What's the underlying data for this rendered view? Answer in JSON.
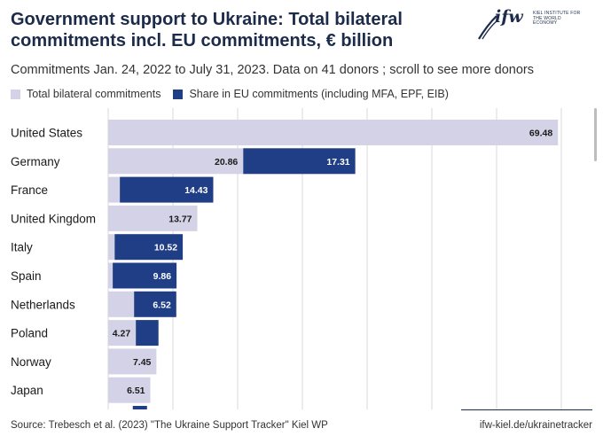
{
  "header": {
    "title": "Government support to Ukraine: Total bilateral commitments incl. EU commitments, € billion",
    "subtitle": "Commitments Jan. 24, 2022 to July 31, 2023. Data on 41 donors ; scroll to see more donors"
  },
  "logo": {
    "mark": "ifw",
    "institute": "KIEL INSTITUTE FOR THE WORLD ECONOMY"
  },
  "footer": {
    "source": "Source: Trebesch et al. (2023) \"The Ukraine Support Tracker\" Kiel WP",
    "site": "ifw-kiel.de/ukrainetracker"
  },
  "colors": {
    "bilateral": "#d4d2e6",
    "eu": "#1f3e86",
    "title": "#1c2b4a"
  },
  "chart_data": {
    "type": "bar",
    "orientation": "horizontal",
    "stacked": true,
    "title": "Government support to Ukraine: Total bilateral commitments incl. EU commitments, € billion",
    "legend_position": "top-left",
    "grid": true,
    "xlim": [
      0,
      70
    ],
    "categories": [
      "United States",
      "Germany",
      "France",
      "United Kingdom",
      "Italy",
      "Spain",
      "Netherlands",
      "Poland",
      "Norway",
      "Japan"
    ],
    "series": [
      {
        "name": "Total bilateral commitments",
        "values": [
          69.48,
          20.86,
          1.8,
          13.77,
          1.0,
          0.7,
          4.0,
          4.27,
          7.45,
          6.51
        ],
        "labels": [
          "69.48",
          "20.86",
          "",
          "13.77",
          "",
          "",
          "",
          "4.27",
          "7.45",
          "6.51"
        ]
      },
      {
        "name": "Share in EU commitments (including MFA, EPF, EIB)",
        "values": [
          0,
          17.31,
          14.43,
          0,
          10.52,
          9.86,
          6.52,
          3.5,
          0,
          0
        ],
        "labels": [
          "",
          "17.31",
          "14.43",
          "",
          "10.52",
          "9.86",
          "6.52",
          "",
          "",
          ""
        ]
      }
    ]
  }
}
